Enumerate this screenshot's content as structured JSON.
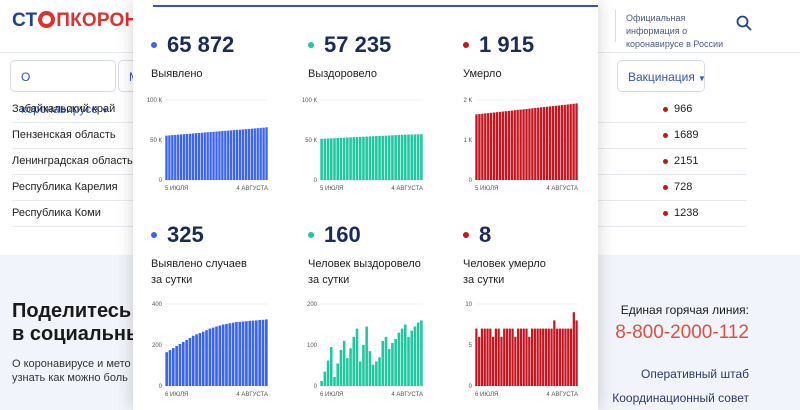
{
  "header": {
    "logo_part1": "СТ",
    "logo_part2": "ПКОРОНАВИ",
    "info": "Официальная информация о коронавирусе в России"
  },
  "nav": {
    "about": "О коронавирусе",
    "m": "М",
    "vaccination": "Вакцинация"
  },
  "regions": [
    {
      "name": "Забайкальский край",
      "value": "966"
    },
    {
      "name": "Пензенская область",
      "value": "1689"
    },
    {
      "name": "Ленинградская область",
      "value": "2151"
    },
    {
      "name": "Республика Карелия",
      "value": "728"
    },
    {
      "name": "Республика Коми",
      "value": "1238"
    }
  ],
  "footer": {
    "share_line1": "Поделитесь н",
    "share_line2": "в социальны",
    "text_line1": "О коронавирусе и мето",
    "text_line2": "узнать как можно боль",
    "hotline_label": "Единая горячая линия:",
    "hotline_number": "8-800-2000-112",
    "link1": "Оперативный штаб",
    "link2": "Координационный совет"
  },
  "stats": {
    "detected": {
      "value": "65 872",
      "label": "Выявлено"
    },
    "recovered": {
      "value": "57 235",
      "label": "Выздоровело"
    },
    "died": {
      "value": "1 915",
      "label": "Умерло"
    },
    "detected_day": {
      "value": "325",
      "label_line1": "Выявлено случаев",
      "label_line2": "за сутки"
    },
    "recovered_day": {
      "value": "160",
      "label_line1": "Человек выздоровело",
      "label_line2": "за сутки"
    },
    "died_day": {
      "value": "8",
      "label_line1": "Человек умерло",
      "label_line2": "за сутки"
    }
  },
  "colors": {
    "blue": "#3b64ef",
    "green": "#1fc8a0",
    "red": "#c8141e"
  },
  "chart_data": [
    {
      "type": "bar",
      "id": "cum-detected",
      "color": "#3b64ef",
      "ylim": [
        0,
        100000
      ],
      "yticks": [
        "0",
        "50 К",
        "100 К"
      ],
      "xticks": [
        "5 ИЮЛЯ",
        "4 АВГУСТА"
      ],
      "values": [
        55500,
        55800,
        56100,
        56400,
        56700,
        57000,
        57300,
        57600,
        57900,
        58200,
        58500,
        58800,
        59100,
        59400,
        59700,
        60000,
        60300,
        60600,
        60900,
        61200,
        61500,
        61800,
        62100,
        62400,
        62700,
        63000,
        63300,
        63600,
        63900,
        64200,
        64500,
        64800,
        65100,
        65400,
        65872
      ]
    },
    {
      "type": "bar",
      "id": "cum-recovered",
      "color": "#1fc8a0",
      "ylim": [
        0,
        100000
      ],
      "yticks": [
        "0",
        "50 К",
        "100 К"
      ],
      "xticks": [
        "5 ИЮЛЯ",
        "4 АВГУСТА"
      ],
      "values": [
        51500,
        51700,
        51900,
        52100,
        52300,
        52500,
        52700,
        52900,
        53100,
        53300,
        53500,
        53700,
        53900,
        54100,
        54300,
        54500,
        54700,
        54900,
        55100,
        55300,
        55500,
        55700,
        55900,
        56100,
        56300,
        56500,
        56700,
        56800,
        56900,
        57000,
        57100,
        57235
      ]
    },
    {
      "type": "bar",
      "id": "cum-died",
      "color": "#c8141e",
      "ylim": [
        0,
        2000
      ],
      "yticks": [
        "0",
        "1 К",
        "2 К"
      ],
      "xticks": [
        "5 ИЮЛЯ",
        "4 АВГУСТА"
      ],
      "values": [
        1640,
        1648,
        1656,
        1664,
        1672,
        1680,
        1688,
        1696,
        1704,
        1712,
        1720,
        1728,
        1736,
        1744,
        1752,
        1760,
        1768,
        1776,
        1784,
        1792,
        1800,
        1808,
        1816,
        1824,
        1832,
        1840,
        1848,
        1856,
        1864,
        1872,
        1880,
        1888,
        1896,
        1904,
        1915
      ]
    },
    {
      "type": "bar",
      "id": "day-detected",
      "color": "#3b64ef",
      "ylim": [
        0,
        400
      ],
      "yticks": [
        "0",
        "200",
        "400"
      ],
      "xticks": [
        "6 ИЮЛЯ",
        "4 АВГУСТА"
      ],
      "values": [
        165,
        175,
        185,
        195,
        205,
        215,
        225,
        235,
        245,
        252,
        258,
        265,
        272,
        280,
        285,
        290,
        295,
        300,
        303,
        306,
        309,
        312,
        313,
        315,
        316,
        318,
        319,
        320,
        322,
        323,
        325
      ]
    },
    {
      "type": "bar",
      "id": "day-recovered",
      "color": "#1fc8a0",
      "ylim": [
        0,
        200
      ],
      "yticks": [
        "0",
        "100",
        "200"
      ],
      "xticks": [
        "6 ИЮЛЯ",
        "4 АВГУСТА"
      ],
      "values": [
        12,
        35,
        62,
        95,
        22,
        55,
        88,
        110,
        68,
        92,
        120,
        140,
        60,
        100,
        145,
        85,
        52,
        60,
        70,
        110,
        120,
        90,
        105,
        115,
        130,
        140,
        150,
        120,
        135,
        145,
        155,
        160
      ]
    },
    {
      "type": "bar",
      "id": "day-died",
      "color": "#c8141e",
      "ylim": [
        0,
        10
      ],
      "yticks": [
        "0",
        "5",
        "10"
      ],
      "xticks": [
        "6 ИЮЛЯ",
        "4 АВГУСТА"
      ],
      "values": [
        7,
        6,
        7,
        7,
        7,
        7,
        6,
        7,
        7,
        6,
        7,
        7,
        7,
        7,
        6,
        7,
        7,
        7,
        7,
        6,
        7,
        7,
        7,
        7,
        7,
        7,
        7,
        7,
        8,
        7,
        7,
        7,
        7,
        7,
        7,
        9,
        8
      ]
    }
  ]
}
